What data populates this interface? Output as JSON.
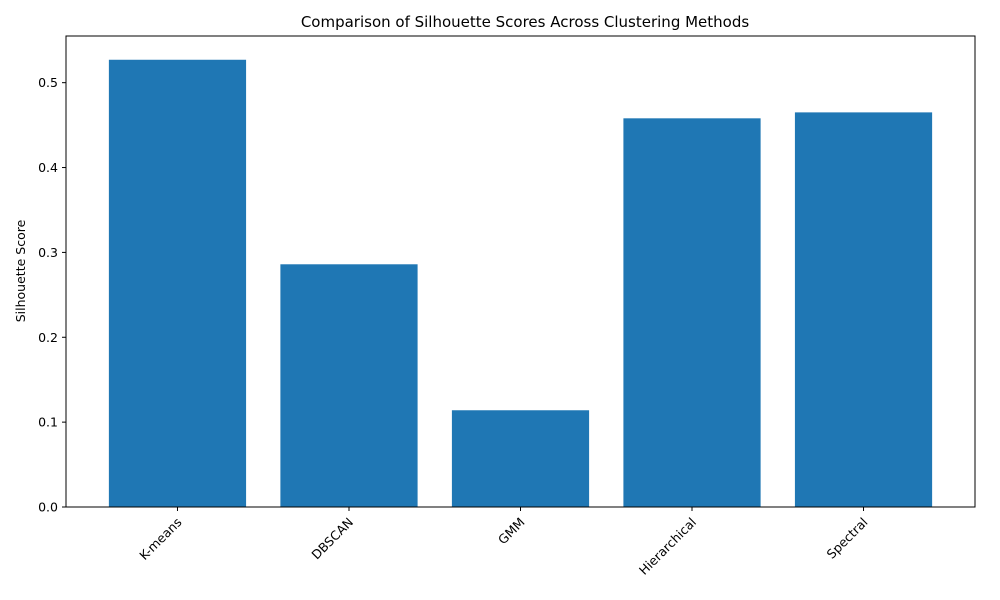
{
  "chart_data": {
    "type": "bar",
    "title": "Comparison of Silhouette Scores Across Clustering Methods",
    "xlabel": "",
    "ylabel": "Silhouette Score",
    "categories": [
      "K-means",
      "DBSCAN",
      "GMM",
      "Hierarchical",
      "Spectral"
    ],
    "values": [
      0.527,
      0.286,
      0.114,
      0.458,
      0.465
    ],
    "ylim": [
      0,
      0.555
    ],
    "yticks": [
      0.0,
      0.1,
      0.2,
      0.3,
      0.4,
      0.5
    ],
    "ytick_labels": [
      "0.0",
      "0.1",
      "0.2",
      "0.3",
      "0.4",
      "0.5"
    ],
    "bar_color": "#1f77b4",
    "grid": false,
    "legend": false
  }
}
